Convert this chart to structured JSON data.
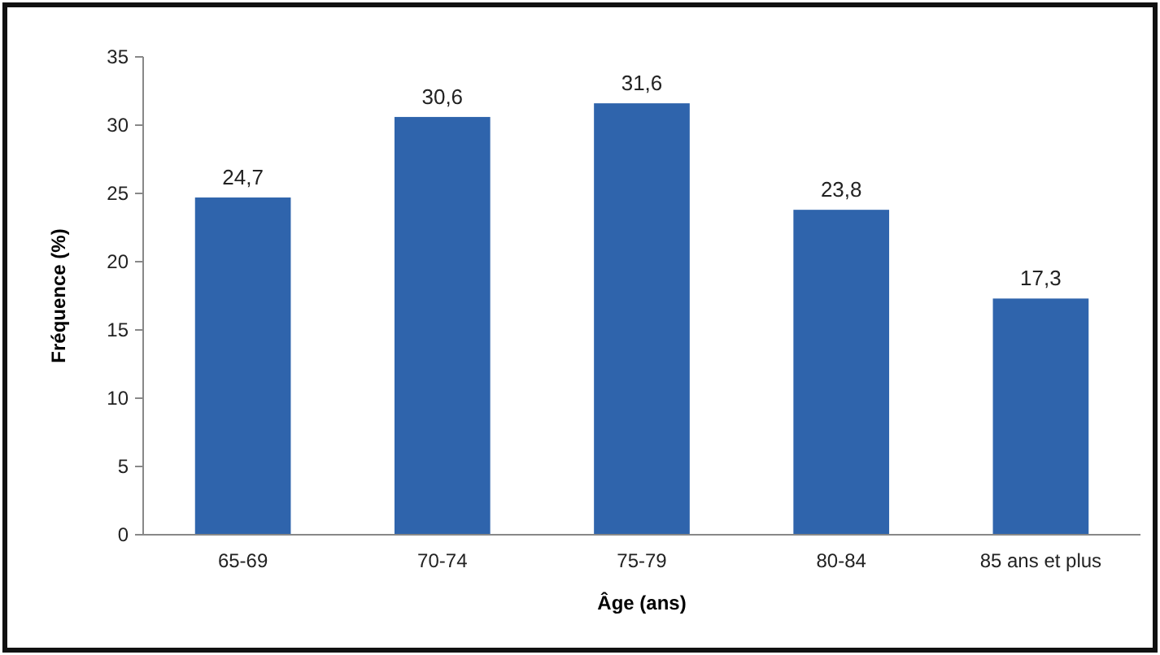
{
  "chart_data": {
    "type": "bar",
    "xlabel": "Âge (ans)",
    "ylabel": "Fréquence (%)",
    "categories": [
      "65-69",
      "70-74",
      "75-79",
      "80-84",
      "85 ans et plus"
    ],
    "values": [
      24.7,
      30.6,
      31.6,
      23.8,
      17.3
    ],
    "value_labels": [
      "24,7",
      "30,6",
      "31,6",
      "23,8",
      "17,3"
    ],
    "color": "#2f64ac",
    "ylim": [
      0,
      35
    ],
    "yticks": [
      0,
      5,
      10,
      15,
      20,
      25,
      30,
      35
    ],
    "grid": false
  }
}
